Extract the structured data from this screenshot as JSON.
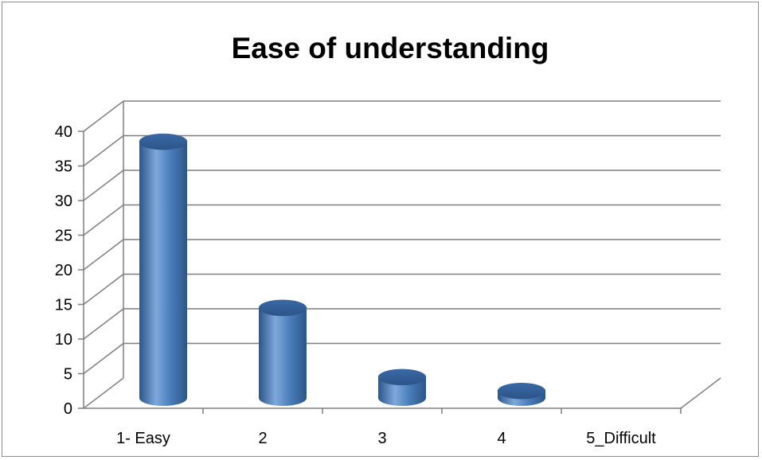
{
  "chart_data": {
    "type": "bar",
    "title": "Ease of understanding",
    "categories": [
      "1- Easy",
      "2",
      "3",
      "4",
      "5_Difficult"
    ],
    "values": [
      37,
      13,
      3,
      1,
      0
    ],
    "ylim": [
      0,
      40
    ],
    "yticks": [
      0,
      5,
      10,
      15,
      20,
      25,
      30,
      35,
      40
    ],
    "grid": true,
    "legend": "none",
    "style": "3d-cylinder",
    "colors": {
      "bar": "#4a7ebb",
      "bar_light": "#7fa8dc",
      "bar_dark": "#2c5588",
      "gridline": "#7f7f7f"
    }
  }
}
